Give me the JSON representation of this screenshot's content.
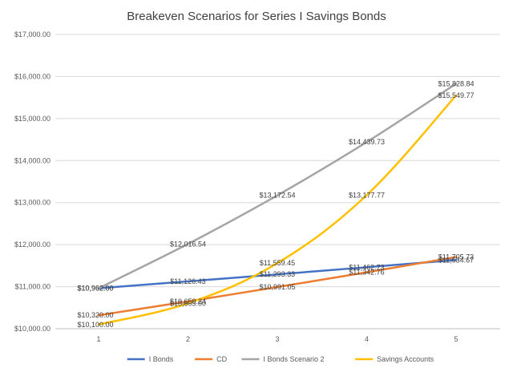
{
  "chart_data": {
    "type": "line",
    "title": "Breakeven Scenarios for Series I Savings Bonds",
    "xlabel": "",
    "ylabel": "",
    "categories": [
      "1",
      "2",
      "3",
      "4",
      "5"
    ],
    "ylim": [
      10000,
      17000
    ],
    "y_ticks": [
      "$10,000.00",
      "$11,000.00",
      "$12,000.00",
      "$13,000.00",
      "$14,000.00",
      "$15,000.00",
      "$16,000.00",
      "$17,000.00"
    ],
    "y_tick_values": [
      10000,
      11000,
      12000,
      13000,
      14000,
      15000,
      16000,
      17000
    ],
    "grid": true,
    "legend_position": "bottom",
    "smooth": true,
    "series": [
      {
        "name": "I Bonds",
        "color": "#4472c4",
        "values": [
          10962.0,
          11126.43,
          11293.33,
          11462.73,
          11634.67
        ],
        "labels": [
          "$10,962.00",
          "$11,126.43",
          "$11,293.33",
          "$11,462.73",
          "$11,634.67"
        ]
      },
      {
        "name": "CD",
        "color": "#ed7d31",
        "values": [
          10320.0,
          10650.24,
          10991.05,
          11342.76,
          11705.73
        ],
        "labels": [
          "$10,320.00",
          "$10,650.24",
          "$10,991.05",
          "$11,342.76",
          "$11,705.73"
        ]
      },
      {
        "name": "I Bonds Scenario 2",
        "color": "#a5a5a5",
        "values": [
          10962.0,
          12016.54,
          13172.54,
          14439.73,
          15828.84
        ],
        "labels": [
          "$10,962.00",
          "$12,016.54",
          "$13,172.54",
          "$14,439.73",
          "$15,828.84"
        ]
      },
      {
        "name": "Savings Accounts",
        "color": "#ffc000",
        "values": [
          10100.0,
          10605.0,
          11559.45,
          13177.77,
          15549.77
        ],
        "labels": [
          "$10,100.00",
          "$10,605.00",
          "$11,559.45",
          "$13,177.77",
          "$15,549.77"
        ]
      }
    ]
  }
}
